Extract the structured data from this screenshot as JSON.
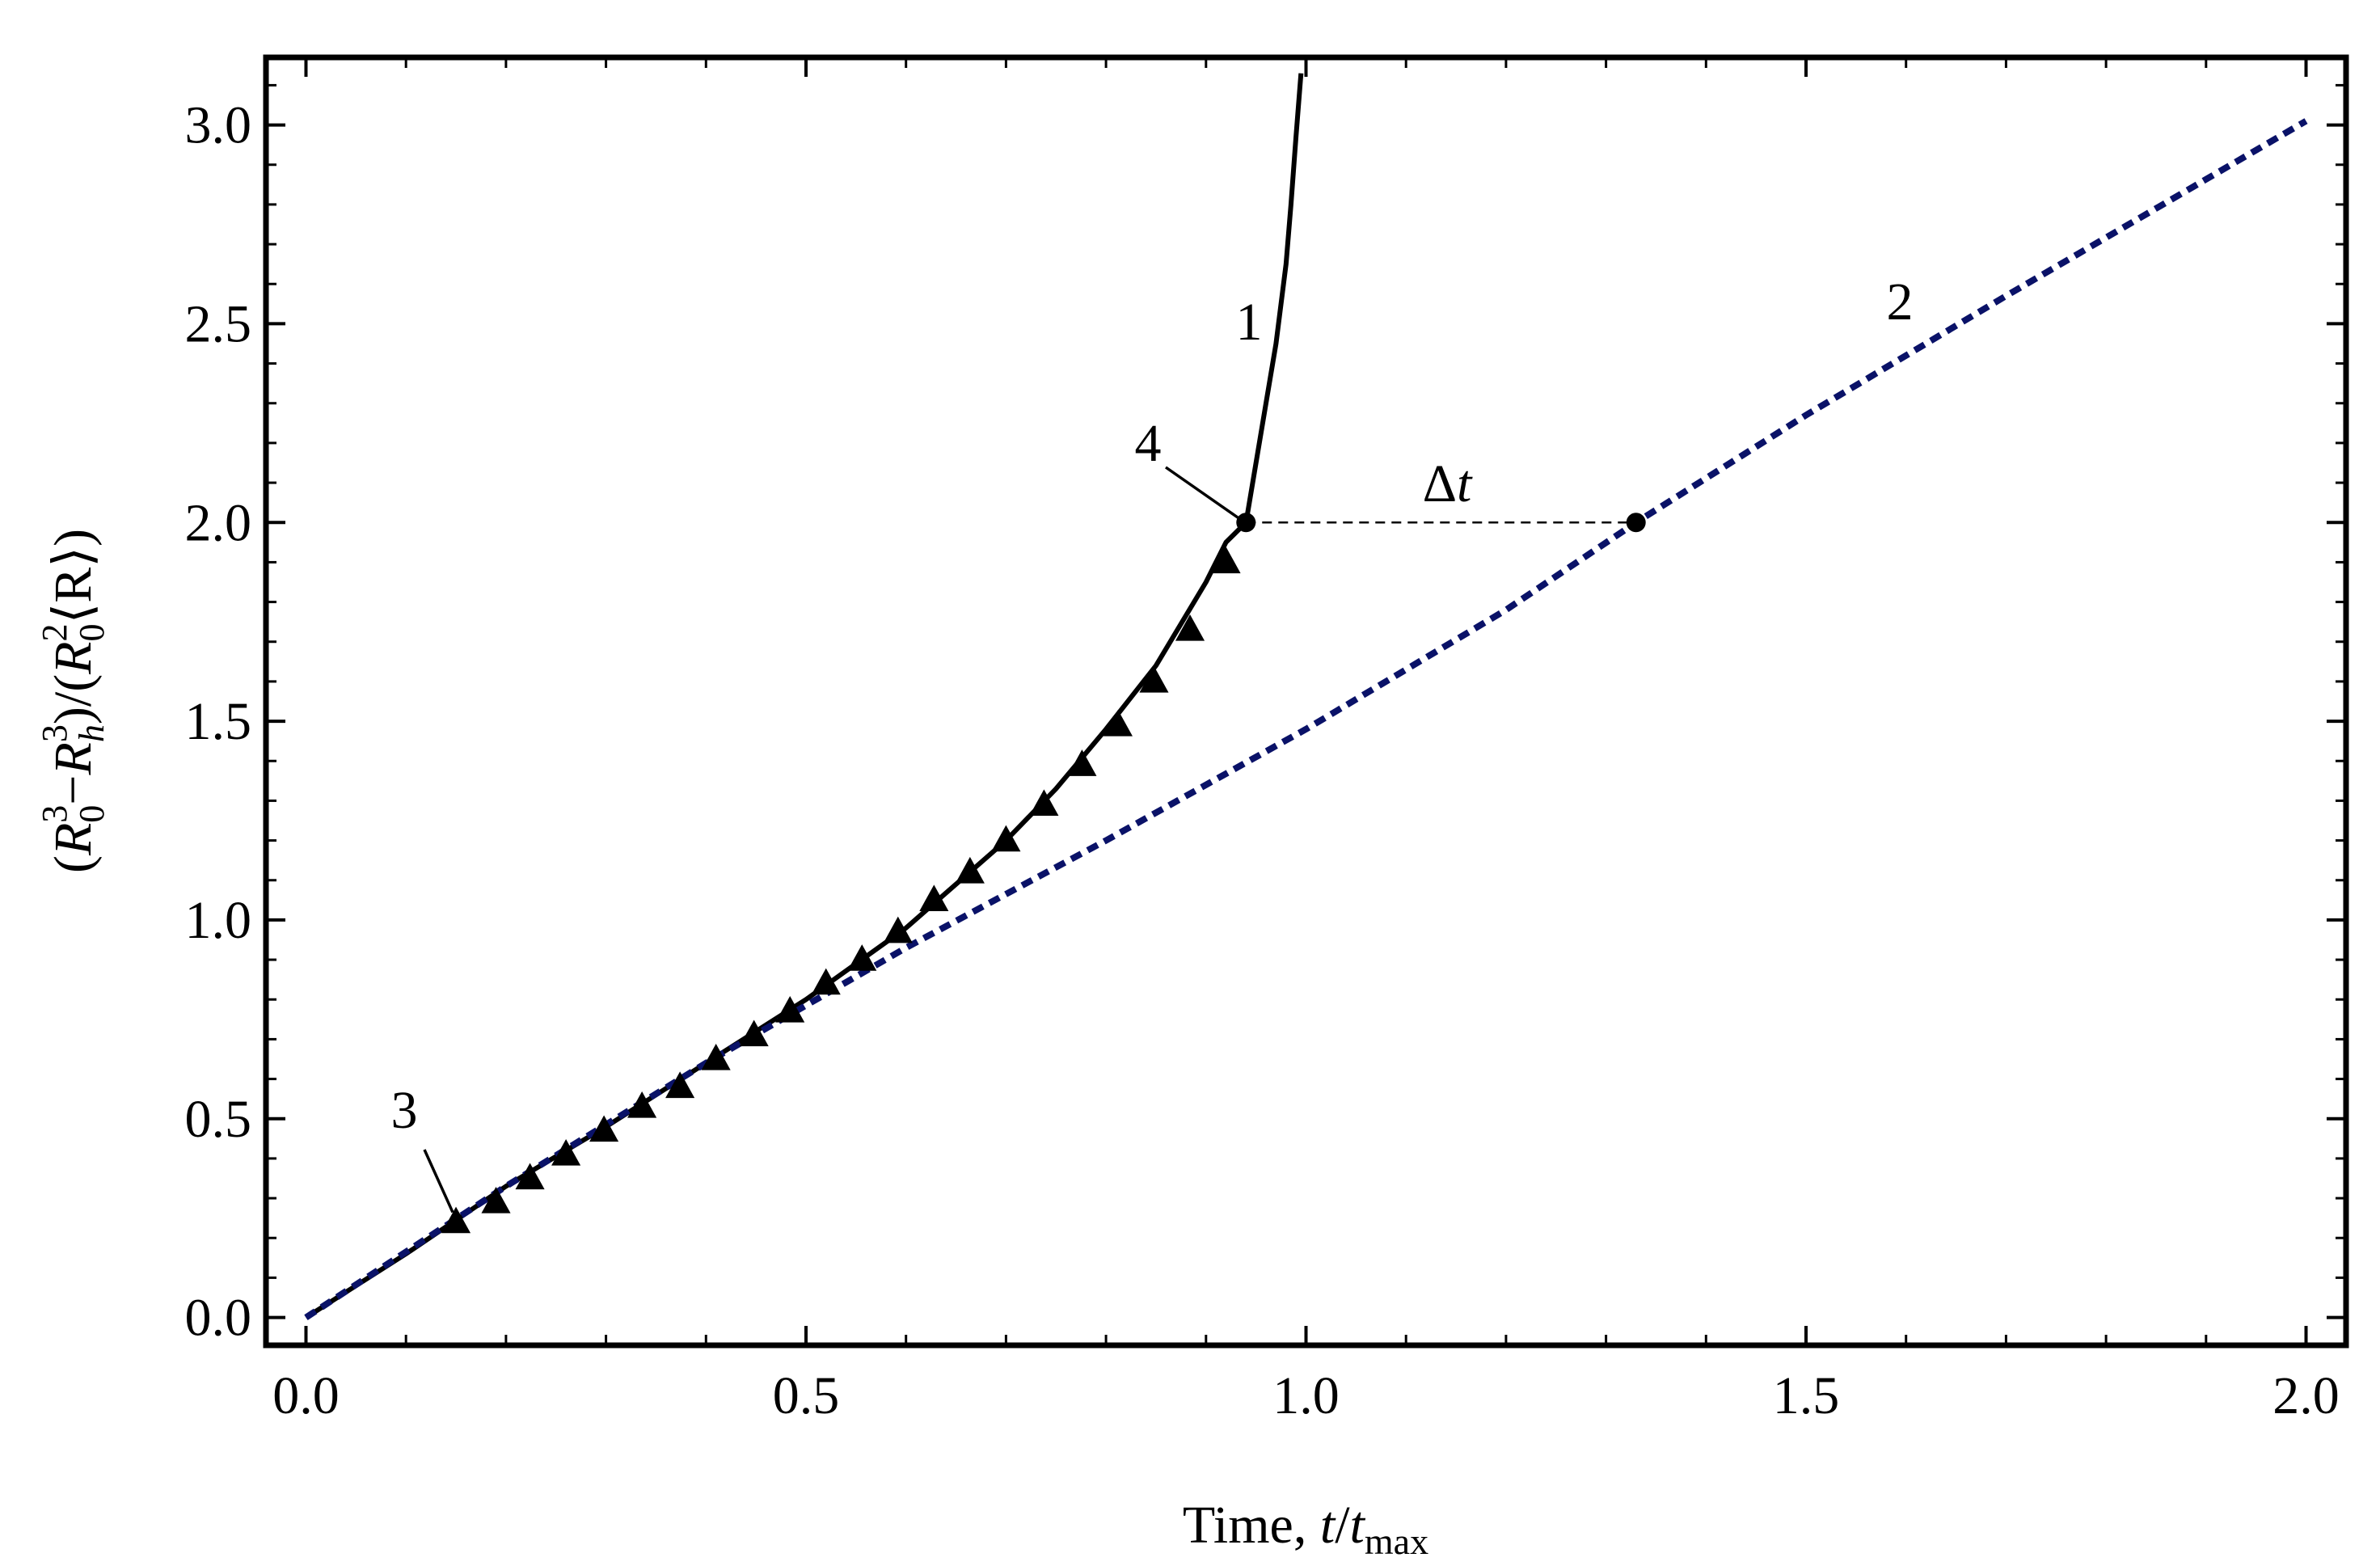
{
  "chart_data": {
    "type": "line",
    "title": "",
    "xlabel": {
      "prefix": "Time, ",
      "var": "t",
      "slash": "/",
      "sub_var": "t",
      "sub": "max"
    },
    "ylabel": {
      "p1": "(",
      "R": "R",
      "sub0": "0",
      "sup3": "3",
      "minus": "−",
      "Rh": "R",
      "subh": "h",
      "sup3b": "3",
      "mid": ")/(",
      "R2": "R",
      "sub0b": "0",
      "sup2": "2",
      "ang": "⟨R⟩",
      "close": ")"
    },
    "xlim": [
      -0.04,
      2.04
    ],
    "ylim": [
      -0.07,
      3.17
    ],
    "xticks": [
      0.0,
      0.5,
      1.0,
      1.5,
      2.0
    ],
    "xtick_labels": [
      "0.0",
      "0.5",
      "1.0",
      "1.5",
      "2.0"
    ],
    "yticks": [
      0.0,
      0.5,
      1.0,
      1.5,
      2.0,
      2.5,
      3.0
    ],
    "ytick_labels": [
      "0.0",
      "0.5",
      "1.0",
      "1.5",
      "2.0",
      "2.5",
      "3.0"
    ],
    "series": [
      {
        "name": "curve-1",
        "style": "solid",
        "color": "#000000",
        "x": [
          0.0,
          0.1,
          0.2,
          0.3,
          0.4,
          0.5,
          0.6,
          0.7,
          0.75,
          0.8,
          0.85,
          0.9,
          0.92,
          0.94,
          0.96,
          0.97,
          0.98,
          0.985,
          0.99,
          0.995
        ],
        "y": [
          0.0,
          0.16,
          0.33,
          0.48,
          0.64,
          0.8,
          0.98,
          1.2,
          1.33,
          1.48,
          1.64,
          1.85,
          1.95,
          2.0,
          2.3,
          2.45,
          2.65,
          2.8,
          2.97,
          3.13
        ]
      },
      {
        "name": "curve-2",
        "style": "dashed",
        "color": "#0a1268",
        "x": [
          0.0,
          0.2,
          0.4,
          0.6,
          0.8,
          1.0,
          1.2,
          1.33,
          1.5,
          1.7,
          2.0
        ],
        "y": [
          0.0,
          0.33,
          0.64,
          0.93,
          1.2,
          1.48,
          1.78,
          2.0,
          2.27,
          2.57,
          3.01
        ]
      },
      {
        "name": "triangles-3",
        "style": "markers",
        "color": "#000000",
        "x": [
          0.15,
          0.19,
          0.224,
          0.26,
          0.298,
          0.336,
          0.374,
          0.41,
          0.448,
          0.484,
          0.52,
          0.556,
          0.592,
          0.628,
          0.664,
          0.7,
          0.738,
          0.776,
          0.812,
          0.848,
          0.884,
          0.92
        ],
        "y": [
          0.24,
          0.29,
          0.35,
          0.41,
          0.47,
          0.53,
          0.58,
          0.65,
          0.71,
          0.77,
          0.84,
          0.9,
          0.97,
          1.05,
          1.12,
          1.2,
          1.29,
          1.39,
          1.49,
          1.6,
          1.73,
          1.9
        ]
      }
    ],
    "points": [
      {
        "name": "point-4",
        "x": 0.94,
        "y": 2.0
      },
      {
        "name": "point-2",
        "x": 1.33,
        "y": 2.0
      }
    ],
    "annotations": {
      "label_1": "1",
      "label_2": "2",
      "label_3": "3",
      "label_4": "4",
      "delta": "Δ",
      "delta_var": "t"
    }
  }
}
